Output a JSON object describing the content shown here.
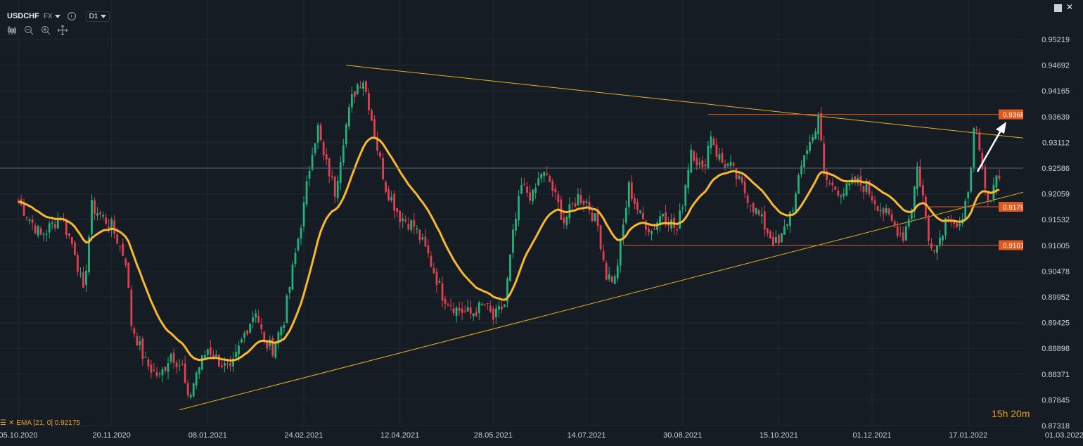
{
  "header": {
    "symbol": "USDCHF",
    "market": "FX",
    "timeframe": "D1"
  },
  "toolbar": {
    "icons": [
      "candles-icon",
      "zoom-out-icon",
      "zoom-in-icon",
      "crosshair-move-icon"
    ]
  },
  "window_controls": [
    "maximize-icon",
    "close-icon"
  ],
  "indicator_legend": {
    "label": "EMA [21, 0] 0.92175"
  },
  "timer": "15h 20m",
  "colors": {
    "background": "#151c24",
    "bull": "#26b07a",
    "bear": "#e04050",
    "ema": "#f7b731",
    "trendline": "#e8b020",
    "level": "#e05a1e",
    "grid": "#1f2833",
    "axis_text": "#c9d1d9",
    "current_price_bg": "#3a4450"
  },
  "chart_data": {
    "type": "candlestick",
    "symbol": "USDCHF",
    "timeframe": "D1",
    "ylim": [
      0.87318,
      0.95482
    ],
    "y_ticks": [
      "0.95219",
      "0.94692",
      "0.94165",
      "0.93639",
      "0.93112",
      "0.92586",
      "0.92059",
      "0.91532",
      "0.91005",
      "0.90478",
      "0.89952",
      "0.89425",
      "0.88898",
      "0.88371",
      "0.87845",
      "0.87318"
    ],
    "x_ticks": [
      "05.10.2020",
      "20.11.2020",
      "08.01.2021",
      "24.02.2021",
      "12.04.2021",
      "28.05.2021",
      "14.07.2021",
      "30.08.2021",
      "15.10.2021",
      "01.12.2021",
      "17.01.2022",
      "01.03.2022"
    ],
    "x_tick_bars": [
      0,
      33,
      67,
      101,
      135,
      168,
      201,
      235,
      269,
      302,
      336,
      370
    ],
    "current_price": 0.92586,
    "price_labels": [
      {
        "label": "0.93685",
        "value": 0.93685
      },
      {
        "label": "0.91794",
        "value": 0.91794
      },
      {
        "label": "0.91010",
        "value": 0.9101
      }
    ],
    "ema": {
      "name": "EMA [21, 0]",
      "period": 21,
      "last": 0.92175
    },
    "path": [
      [
        0,
        0.919
      ],
      [
        8,
        0.912
      ],
      [
        15,
        0.916
      ],
      [
        20,
        0.909
      ],
      [
        23,
        0.9
      ],
      [
        26,
        0.918
      ],
      [
        33,
        0.914
      ],
      [
        38,
        0.907
      ],
      [
        40,
        0.894
      ],
      [
        45,
        0.886
      ],
      [
        50,
        0.883
      ],
      [
        54,
        0.888
      ],
      [
        58,
        0.885
      ],
      [
        60,
        0.878
      ],
      [
        63,
        0.884
      ],
      [
        67,
        0.889
      ],
      [
        70,
        0.887
      ],
      [
        75,
        0.884
      ],
      [
        80,
        0.892
      ],
      [
        84,
        0.897
      ],
      [
        87,
        0.89
      ],
      [
        90,
        0.889
      ],
      [
        94,
        0.895
      ],
      [
        97,
        0.905
      ],
      [
        101,
        0.918
      ],
      [
        104,
        0.93
      ],
      [
        106,
        0.934
      ],
      [
        108,
        0.928
      ],
      [
        110,
        0.925
      ],
      [
        112,
        0.921
      ],
      [
        115,
        0.932
      ],
      [
        118,
        0.94
      ],
      [
        120,
        0.943
      ],
      [
        122,
        0.944
      ],
      [
        124,
        0.939
      ],
      [
        127,
        0.93
      ],
      [
        130,
        0.922
      ],
      [
        135,
        0.916
      ],
      [
        140,
        0.914
      ],
      [
        145,
        0.908
      ],
      [
        150,
        0.9
      ],
      [
        155,
        0.897
      ],
      [
        160,
        0.896
      ],
      [
        165,
        0.898
      ],
      [
        168,
        0.895
      ],
      [
        172,
        0.898
      ],
      [
        175,
        0.912
      ],
      [
        178,
        0.922
      ],
      [
        182,
        0.92
      ],
      [
        185,
        0.925
      ],
      [
        188,
        0.923
      ],
      [
        193,
        0.915
      ],
      [
        198,
        0.92
      ],
      [
        201,
        0.919
      ],
      [
        205,
        0.914
      ],
      [
        208,
        0.904
      ],
      [
        211,
        0.903
      ],
      [
        213,
        0.91
      ],
      [
        216,
        0.922
      ],
      [
        220,
        0.916
      ],
      [
        224,
        0.913
      ],
      [
        228,
        0.917
      ],
      [
        233,
        0.913
      ],
      [
        235,
        0.919
      ],
      [
        238,
        0.93
      ],
      [
        242,
        0.925
      ],
      [
        245,
        0.933
      ],
      [
        247,
        0.929
      ],
      [
        249,
        0.927
      ],
      [
        252,
        0.926
      ],
      [
        255,
        0.923
      ],
      [
        260,
        0.918
      ],
      [
        264,
        0.914
      ],
      [
        267,
        0.911
      ],
      [
        269,
        0.91
      ],
      [
        272,
        0.915
      ],
      [
        275,
        0.92
      ],
      [
        278,
        0.929
      ],
      [
        281,
        0.932
      ],
      [
        283,
        0.937
      ],
      [
        285,
        0.924
      ],
      [
        288,
        0.922
      ],
      [
        292,
        0.921
      ],
      [
        296,
        0.923
      ],
      [
        300,
        0.922
      ],
      [
        302,
        0.92
      ],
      [
        306,
        0.917
      ],
      [
        310,
        0.914
      ],
      [
        313,
        0.912
      ],
      [
        316,
        0.918
      ],
      [
        318,
        0.926
      ],
      [
        320,
        0.92
      ],
      [
        322,
        0.911
      ],
      [
        325,
        0.91
      ],
      [
        329,
        0.917
      ],
      [
        332,
        0.914
      ],
      [
        334,
        0.914
      ],
      [
        336,
        0.922
      ],
      [
        338,
        0.933
      ],
      [
        339,
        0.932
      ],
      [
        341,
        0.925
      ],
      [
        343,
        0.918
      ],
      [
        345,
        0.923
      ],
      [
        347,
        0.925
      ]
    ]
  }
}
